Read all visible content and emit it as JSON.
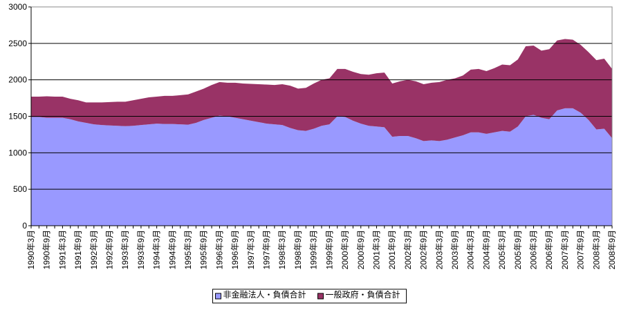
{
  "chart_data": {
    "type": "stacked-area",
    "categories": [
      "1990年3月",
      null,
      "1990年9月",
      null,
      "1991年3月",
      null,
      "1991年9月",
      null,
      "1992年3月",
      null,
      "1992年9月",
      null,
      "1993年3月",
      null,
      "1993年9月",
      null,
      "1994年3月",
      null,
      "1994年9月",
      null,
      "1995年3月",
      null,
      "1995年9月",
      null,
      "1996年3月",
      null,
      "1996年9月",
      null,
      "1997年3月",
      null,
      "1997年9月",
      null,
      "1998年3月",
      null,
      "1998年9月",
      null,
      "1999年3月",
      null,
      "1999年9月",
      null,
      "2000年3月",
      null,
      "2000年9月",
      null,
      "2001年3月",
      null,
      "2001年9月",
      null,
      "2002年3月",
      null,
      "2002年9月",
      null,
      "2003年3月",
      null,
      "2003年9月",
      null,
      "2004年3月",
      null,
      "2004年9月",
      null,
      "2005年3月",
      null,
      "2005年9月",
      null,
      "2006年3月",
      null,
      "2006年9月",
      null,
      "2007年3月",
      null,
      "2007年9月",
      null,
      "2008年3月",
      null,
      "2008年9月"
    ],
    "series": [
      {
        "name": "非金融法人・負債合計",
        "color": "#9999ff",
        "values": [
          1490,
          1490,
          1480,
          1480,
          1480,
          1460,
          1430,
          1410,
          1390,
          1380,
          1375,
          1370,
          1365,
          1370,
          1380,
          1390,
          1400,
          1395,
          1395,
          1390,
          1385,
          1410,
          1450,
          1480,
          1510,
          1500,
          1480,
          1460,
          1440,
          1420,
          1400,
          1390,
          1380,
          1340,
          1310,
          1300,
          1330,
          1370,
          1390,
          1500,
          1490,
          1440,
          1400,
          1370,
          1360,
          1350,
          1220,
          1230,
          1230,
          1200,
          1160,
          1170,
          1160,
          1180,
          1210,
          1240,
          1280,
          1280,
          1260,
          1280,
          1300,
          1290,
          1360,
          1500,
          1520,
          1480,
          1460,
          1580,
          1610,
          1610,
          1550,
          1450,
          1320,
          1330,
          1200
        ]
      },
      {
        "name": "一般政府・負債合計",
        "color": "#993366",
        "values": [
          280,
          280,
          295,
          290,
          290,
          280,
          290,
          280,
          300,
          310,
          320,
          330,
          335,
          350,
          360,
          370,
          370,
          385,
          385,
          400,
          415,
          430,
          430,
          450,
          460,
          460,
          480,
          490,
          505,
          520,
          535,
          540,
          560,
          580,
          570,
          590,
          620,
          630,
          630,
          650,
          660,
          670,
          680,
          700,
          730,
          750,
          730,
          750,
          770,
          780,
          780,
          790,
          810,
          820,
          810,
          820,
          860,
          870,
          860,
          880,
          910,
          910,
          920,
          960,
          950,
          920,
          960,
          960,
          950,
          940,
          930,
          930,
          950,
          960,
          950
        ]
      }
    ],
    "ylim": [
      0,
      3000
    ],
    "yticks": [
      0,
      500,
      1000,
      1500,
      2000,
      2500,
      3000
    ],
    "grid": true,
    "legend": "bottom"
  }
}
